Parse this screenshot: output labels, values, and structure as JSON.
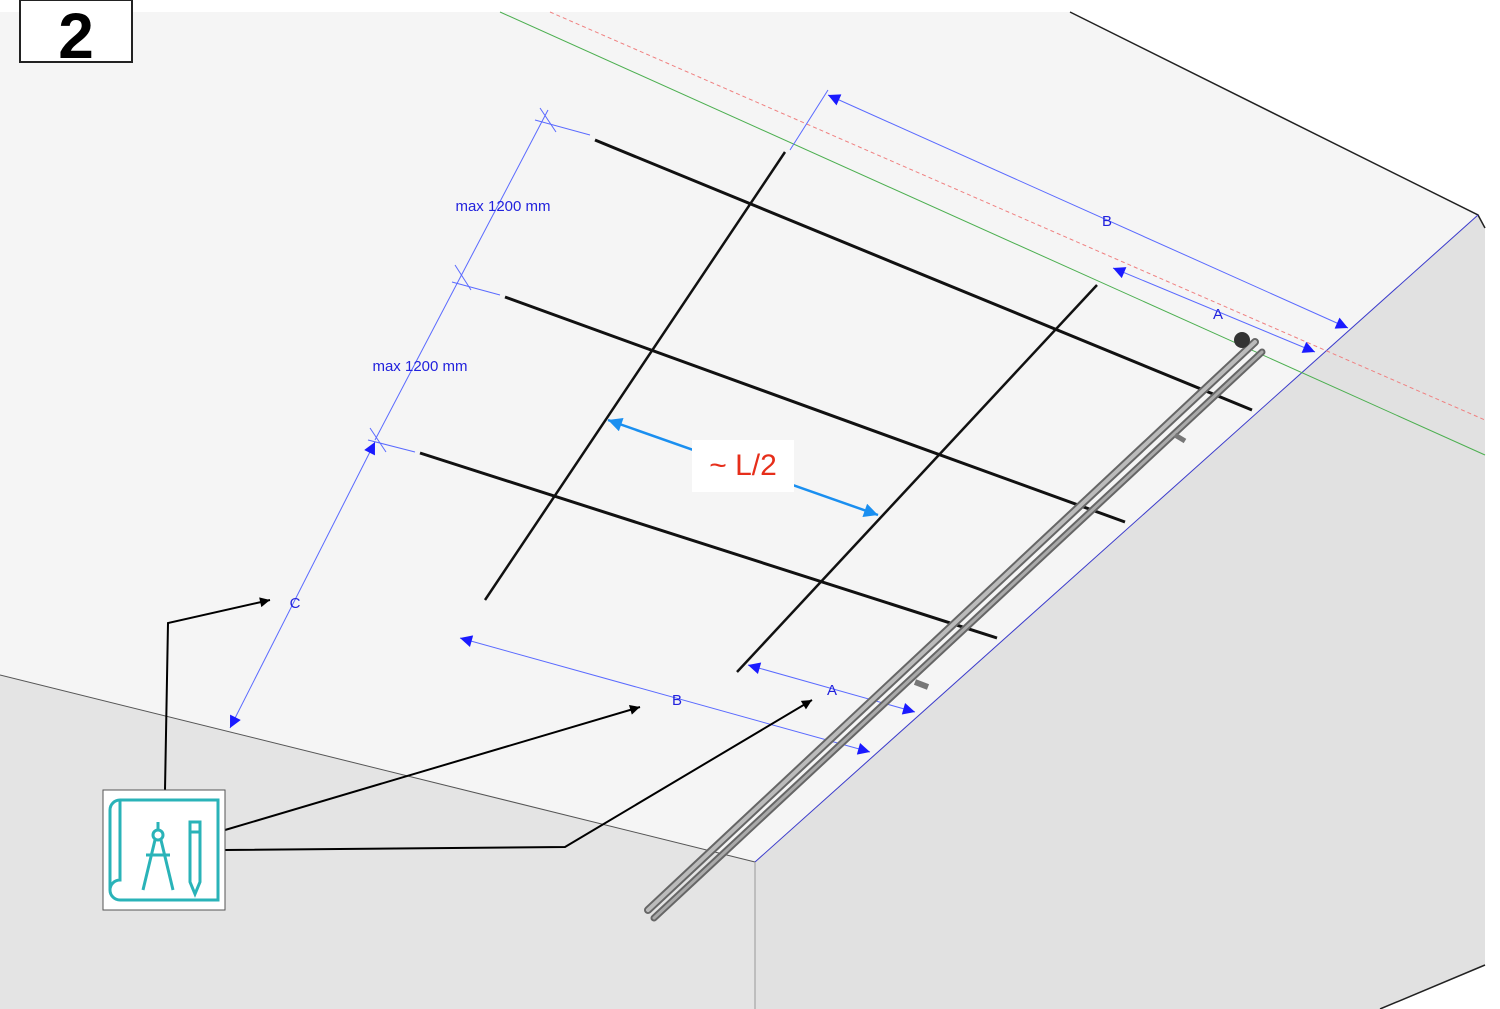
{
  "step": "2",
  "dimensions": {
    "spacing_top": "max 1200 mm",
    "spacing_bottom": "max 1200 mm",
    "b_top": "B",
    "a_top": "A",
    "b_bottom": "B",
    "a_bottom": "A",
    "c": "C"
  },
  "center_label": "~ L/2"
}
